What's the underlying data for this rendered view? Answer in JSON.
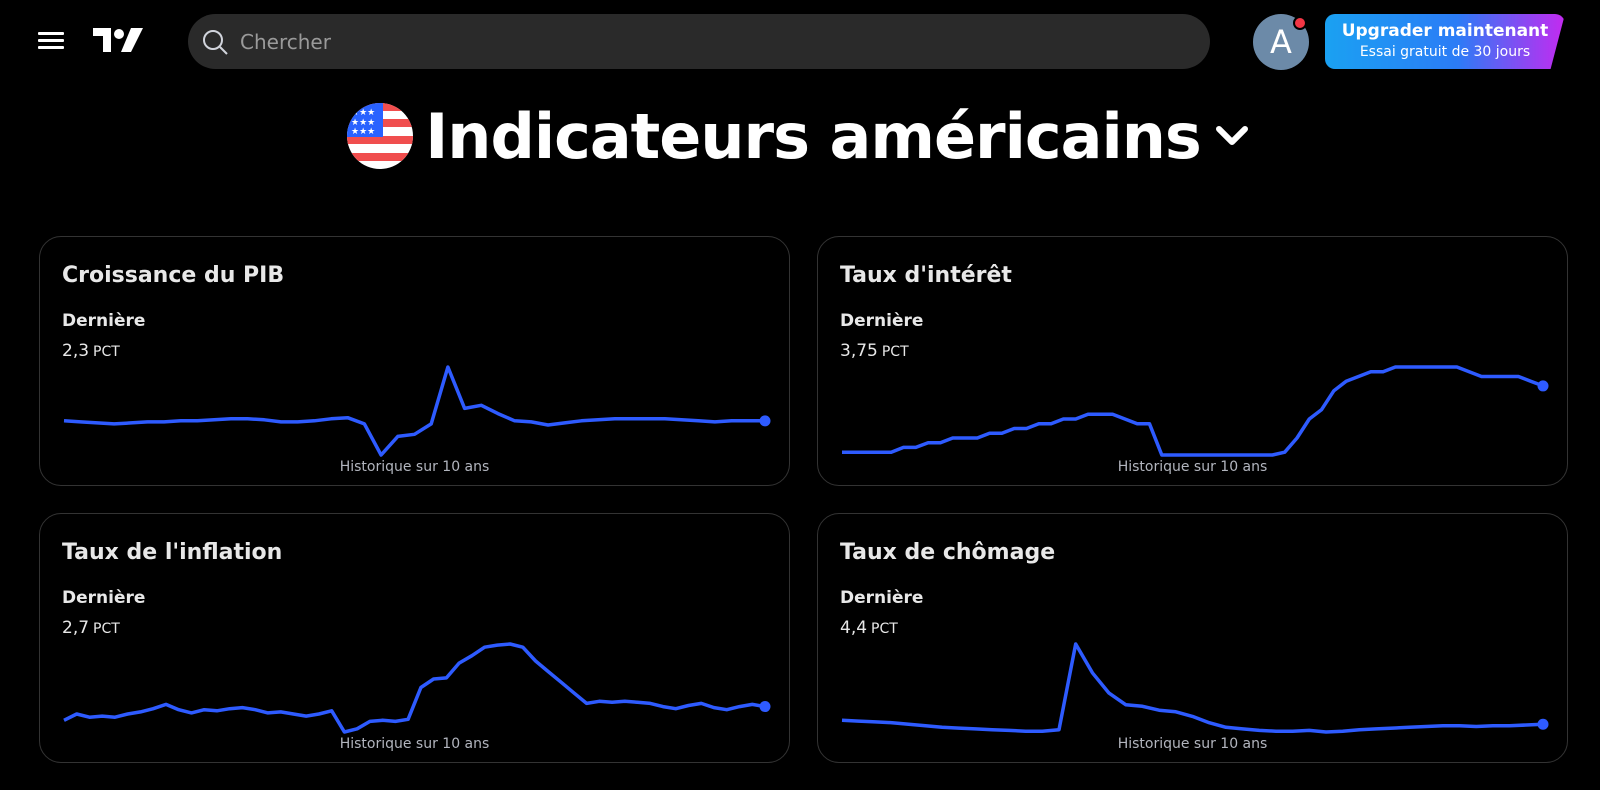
{
  "header": {
    "search_placeholder": "Chercher",
    "avatar_letter": "A",
    "upgrade_title": "Upgrader maintenant",
    "upgrade_subtitle": "Essai gratuit de 30 jours"
  },
  "page": {
    "title": "Indicateurs américains"
  },
  "colors": {
    "line": "#2e5bff",
    "card_border": "#333333",
    "upgrade_start": "#1aa1f2",
    "upgrade_end": "#c42af0"
  },
  "cards": [
    {
      "title": "Croissance du PIB",
      "label": "Dernière",
      "value": "2,3",
      "unit": "PCT",
      "footer": "Historique sur 10 ans"
    },
    {
      "title": "Taux d'intérêt",
      "label": "Dernière",
      "value": "3,75",
      "unit": "PCT",
      "footer": "Historique sur 10 ans"
    },
    {
      "title": "Taux de l'inflation",
      "label": "Dernière",
      "value": "2,7",
      "unit": "PCT",
      "footer": "Historique sur 10 ans"
    },
    {
      "title": "Taux de chômage",
      "label": "Dernière",
      "value": "4,4",
      "unit": "PCT",
      "footer": "Historique sur 10 ans"
    }
  ],
  "chart_data": [
    {
      "type": "line",
      "title": "Croissance du PIB",
      "values": [
        2.3,
        2.2,
        2.1,
        2.0,
        2.1,
        2.2,
        2.2,
        2.3,
        2.3,
        2.4,
        2.5,
        2.5,
        2.4,
        2.2,
        2.2,
        2.3,
        2.5,
        2.6,
        2.0,
        -1.0,
        0.8,
        1.0,
        2.0,
        7.5,
        3.5,
        3.8,
        3.0,
        2.3,
        2.2,
        1.9,
        2.1,
        2.3,
        2.4,
        2.5,
        2.5,
        2.5,
        2.5,
        2.4,
        2.3,
        2.2,
        2.3,
        2.3,
        2.3
      ]
    },
    {
      "type": "line",
      "title": "Taux d'intérêt",
      "values": [
        0.25,
        0.25,
        0.25,
        0.25,
        0.25,
        0.5,
        0.5,
        0.75,
        0.75,
        1.0,
        1.0,
        1.0,
        1.25,
        1.25,
        1.5,
        1.5,
        1.75,
        1.75,
        2.0,
        2.0,
        2.25,
        2.25,
        2.25,
        2.0,
        1.75,
        1.75,
        0.1,
        0.1,
        0.1,
        0.1,
        0.1,
        0.1,
        0.1,
        0.1,
        0.1,
        0.1,
        0.25,
        1.0,
        2.0,
        2.5,
        3.5,
        4.0,
        4.25,
        4.5,
        4.5,
        4.75,
        4.75,
        4.75,
        4.75,
        4.75,
        4.75,
        4.5,
        4.25,
        4.25,
        4.25,
        4.25,
        4.0,
        3.75
      ]
    },
    {
      "type": "line",
      "title": "Taux de l'inflation",
      "values": [
        1.4,
        2.0,
        1.7,
        1.8,
        1.7,
        2.0,
        2.2,
        2.5,
        2.9,
        2.4,
        2.1,
        2.4,
        2.3,
        2.5,
        2.6,
        2.4,
        2.1,
        2.2,
        2.0,
        1.8,
        2.0,
        2.3,
        0.3,
        0.6,
        1.3,
        1.4,
        1.3,
        1.5,
        4.5,
        5.3,
        5.4,
        6.8,
        7.5,
        8.3,
        8.5,
        8.6,
        8.3,
        7.0,
        6.0,
        5.0,
        4.0,
        3.0,
        3.2,
        3.1,
        3.2,
        3.1,
        3.0,
        2.7,
        2.5,
        2.8,
        3.0,
        2.6,
        2.4,
        2.7,
        2.9,
        2.7
      ]
    },
    {
      "type": "line",
      "title": "Taux de chômage",
      "values": [
        4.9,
        4.8,
        4.7,
        4.6,
        4.4,
        4.2,
        4.0,
        3.9,
        3.8,
        3.7,
        3.6,
        3.5,
        3.5,
        3.7,
        14.7,
        11.0,
        8.4,
        6.9,
        6.7,
        6.2,
        6.0,
        5.4,
        4.6,
        4.0,
        3.8,
        3.6,
        3.5,
        3.5,
        3.6,
        3.4,
        3.5,
        3.7,
        3.8,
        3.9,
        4.0,
        4.1,
        4.2,
        4.2,
        4.1,
        4.2,
        4.2,
        4.3,
        4.4
      ]
    }
  ]
}
